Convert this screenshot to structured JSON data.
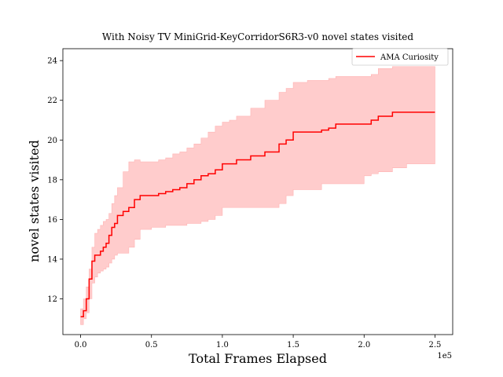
{
  "chart_data": {
    "type": "line",
    "title": "With Noisy TV MiniGrid-KeyCorridorS6R3-v0 novel states visited",
    "xlabel": "Total Frames Elapsed",
    "ylabel": "novel states visited",
    "x_offset_text": "1e5",
    "xlim": [
      -12500,
      262500
    ],
    "ylim": [
      10.2,
      24.6
    ],
    "x_ticks": [
      0,
      50000,
      100000,
      150000,
      200000,
      250000
    ],
    "x_tick_labels": [
      "0.0",
      "0.5",
      "1.0",
      "1.5",
      "2.0",
      "2.5"
    ],
    "y_ticks": [
      12,
      14,
      16,
      18,
      20,
      22,
      24
    ],
    "y_tick_labels": [
      "12",
      "14",
      "16",
      "18",
      "20",
      "22",
      "24"
    ],
    "grid": false,
    "legend": {
      "position": "top-right",
      "entries": [
        "AMA Curiosity"
      ]
    },
    "series": [
      {
        "name": "AMA Curiosity",
        "color": "#ff0000",
        "band_color": "#ffcccc",
        "x": [
          0,
          2000,
          4000,
          6000,
          8000,
          10000,
          12000,
          14000,
          16000,
          18000,
          20000,
          22000,
          24000,
          26000,
          30000,
          34000,
          38000,
          42000,
          50000,
          55000,
          60000,
          65000,
          70000,
          75000,
          80000,
          85000,
          90000,
          95000,
          100000,
          105000,
          110000,
          120000,
          130000,
          140000,
          145000,
          150000,
          160000,
          170000,
          175000,
          180000,
          190000,
          200000,
          205000,
          210000,
          220000,
          230000,
          240000,
          250000
        ],
        "y": [
          11.1,
          11.4,
          12.0,
          13.0,
          13.9,
          14.2,
          14.2,
          14.4,
          14.6,
          14.8,
          15.2,
          15.6,
          15.8,
          16.2,
          16.4,
          16.6,
          17.0,
          17.2,
          17.2,
          17.3,
          17.4,
          17.5,
          17.6,
          17.8,
          18.0,
          18.2,
          18.3,
          18.5,
          18.8,
          18.8,
          19.0,
          19.2,
          19.4,
          19.8,
          20.0,
          20.4,
          20.4,
          20.5,
          20.6,
          20.8,
          20.8,
          20.8,
          21.0,
          21.2,
          21.4,
          21.4,
          21.4,
          21.4
        ],
        "lower": [
          10.7,
          11.0,
          11.3,
          12.0,
          12.8,
          13.1,
          13.3,
          13.4,
          13.5,
          13.6,
          13.8,
          14.0,
          14.2,
          14.3,
          14.3,
          14.6,
          15.0,
          15.5,
          15.6,
          15.6,
          15.7,
          15.7,
          15.7,
          15.8,
          15.8,
          15.9,
          16.0,
          16.2,
          16.6,
          16.6,
          16.6,
          16.6,
          16.6,
          16.8,
          17.2,
          17.5,
          17.5,
          17.8,
          17.8,
          17.8,
          17.8,
          18.2,
          18.3,
          18.4,
          18.6,
          18.8,
          18.8,
          18.8
        ],
        "upper": [
          11.5,
          12.0,
          12.6,
          13.5,
          14.6,
          15.3,
          15.5,
          15.7,
          15.9,
          16.0,
          16.3,
          16.8,
          17.2,
          17.6,
          18.4,
          18.9,
          19.0,
          18.9,
          18.9,
          19.0,
          19.1,
          19.3,
          19.4,
          19.6,
          19.8,
          20.1,
          20.4,
          20.7,
          20.9,
          21.0,
          21.2,
          21.6,
          22.0,
          22.4,
          22.6,
          22.9,
          23.0,
          23.0,
          23.1,
          23.2,
          23.2,
          23.2,
          23.3,
          23.6,
          23.7,
          23.7,
          23.7,
          23.7
        ]
      }
    ]
  }
}
